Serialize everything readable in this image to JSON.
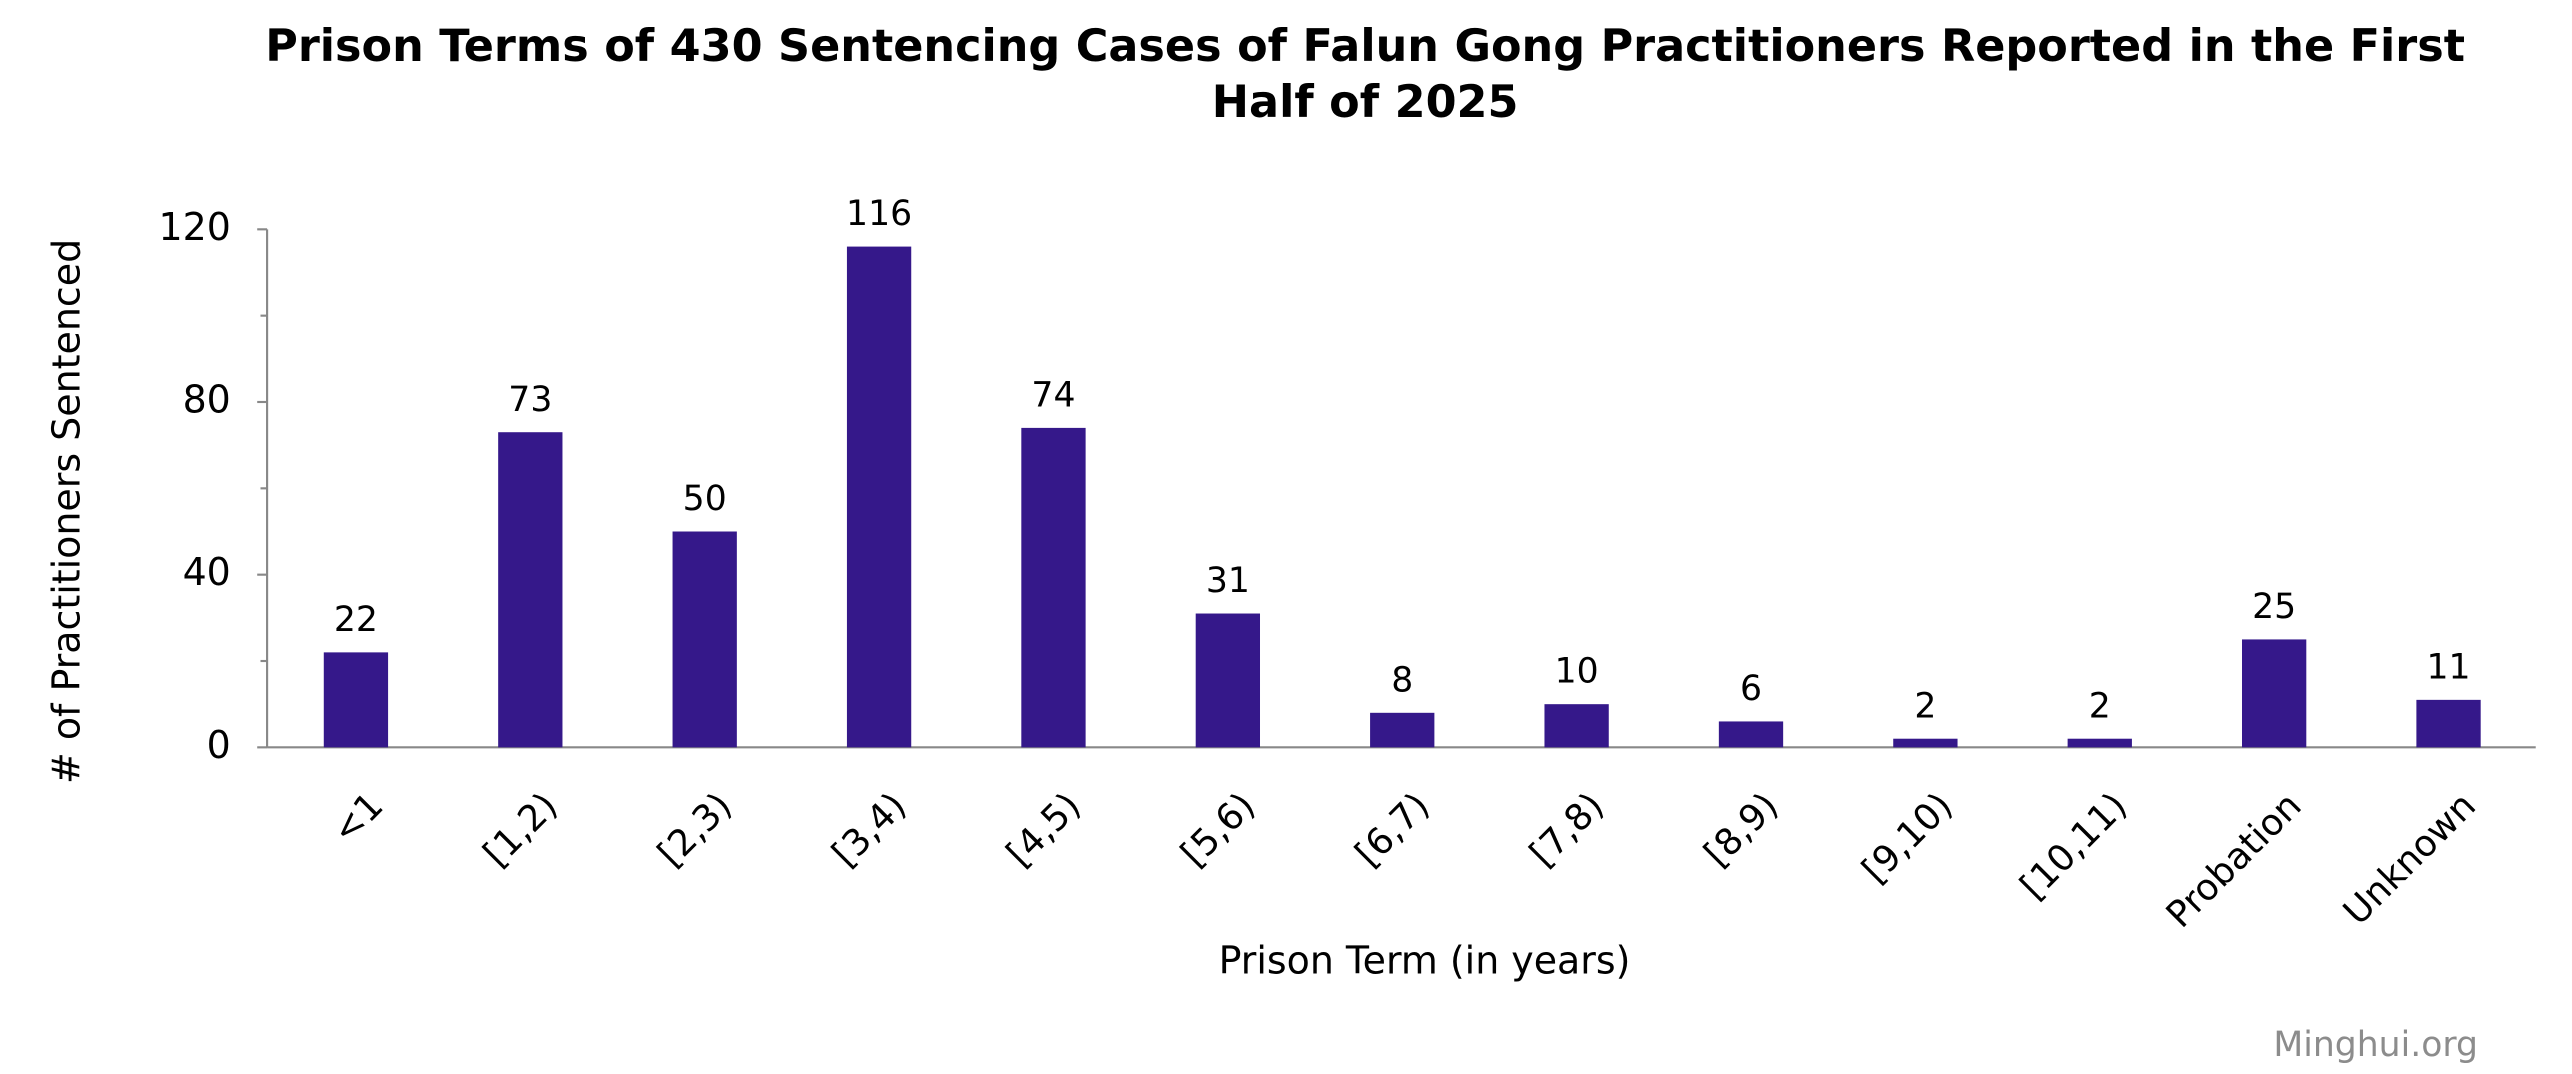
{
  "chart_data": {
    "type": "bar",
    "title": "Prison Terms of 430 Sentencing Cases of Falun Gong Practitioners Reported in the First Half of 2025",
    "x_label": "Prison Term (in years)",
    "y_label": "# of Practitioners Sentenced",
    "categories": [
      "<1",
      "[1,2)",
      "[2,3)",
      "[3,4)",
      "[4,5)",
      "[5,6)",
      "[6,7)",
      "[7,8)",
      "[8,9)",
      "[9,10)",
      "[10,11)",
      "Probation",
      "Unknown"
    ],
    "values": [
      22,
      73,
      50,
      116,
      74,
      31,
      8,
      10,
      6,
      2,
      2,
      25,
      11
    ],
    "color": "#35188a",
    "ylim": [
      0,
      120
    ],
    "yticks": [
      0,
      40,
      80,
      120
    ],
    "minor_yticks": [
      20,
      60,
      100
    ],
    "grid": false,
    "watermark": "Minghui.org"
  }
}
